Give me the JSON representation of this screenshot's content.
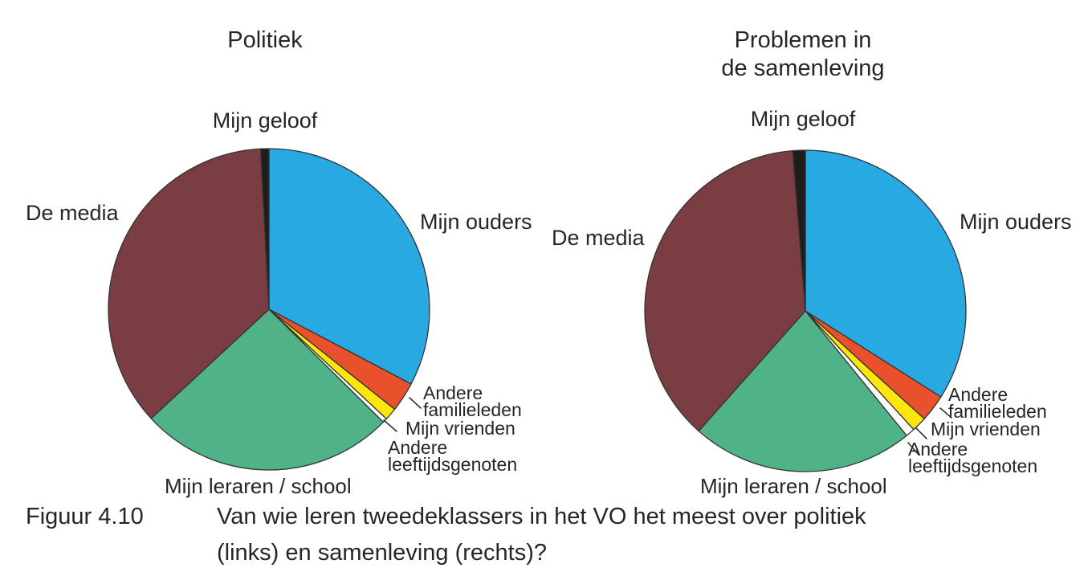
{
  "caption": {
    "label": "Figuur 4.10",
    "line1": "Van wie leren tweedeklassers in het VO het meest over politiek",
    "line2": "(links) en samenleving (rechts)?"
  },
  "chart_data": [
    {
      "type": "pie",
      "title": "Politiek",
      "title_lines": [
        "Politiek"
      ],
      "start_angle_deg": 0,
      "clockwise": true,
      "outline_color": "#333333",
      "legend_position": "around-slices",
      "slices": [
        {
          "label": "Mijn ouders",
          "degrees": 117.7,
          "percent_est": 32.7,
          "color": "#29A9E1"
        },
        {
          "label": "Andere familieleden",
          "degrees": 10.8,
          "percent_est": 3.0,
          "color": "#E8512B"
        },
        {
          "label": "Mijn vrienden",
          "degrees": 4.5,
          "percent_est": 1.3,
          "color": "#FFE60A"
        },
        {
          "label": "Andere leeftijdsgenoten",
          "degrees": 1.6,
          "percent_est": 0.4,
          "color": "#FFFFFF"
        },
        {
          "label": "Mijn leraren / school",
          "degrees": 92.6,
          "percent_est": 25.7,
          "color": "#50B287"
        },
        {
          "label": "De media",
          "degrees": 129.8,
          "percent_est": 36.1,
          "color": "#7A3E42"
        },
        {
          "label": "Mijn geloof",
          "degrees": 3.0,
          "percent_est": 0.8,
          "color": "#1D1D1B"
        }
      ]
    },
    {
      "type": "pie",
      "title": "Problemen in de samenleving",
      "title_lines": [
        "Problemen in",
        "de samenleving"
      ],
      "start_angle_deg": 0,
      "clockwise": true,
      "outline_color": "#333333",
      "legend_position": "around-slices",
      "slices": [
        {
          "label": "Mijn ouders",
          "degrees": 122.4,
          "percent_est": 34.0,
          "color": "#29A9E1"
        },
        {
          "label": "Andere familieleden",
          "degrees": 9.8,
          "percent_est": 2.7,
          "color": "#E8512B"
        },
        {
          "label": "Mijn vrienden",
          "degrees": 5.4,
          "percent_est": 1.5,
          "color": "#FFE60A"
        },
        {
          "label": "Andere leeftijdsgenoten",
          "degrees": 3.3,
          "percent_est": 0.9,
          "color": "#FFFFFF"
        },
        {
          "label": "Mijn leraren / school",
          "degrees": 80.7,
          "percent_est": 22.4,
          "color": "#50B287"
        },
        {
          "label": "De media",
          "degrees": 133.9,
          "percent_est": 37.2,
          "color": "#7A3E42"
        },
        {
          "label": "Mijn geloof",
          "degrees": 4.5,
          "percent_est": 1.3,
          "color": "#1D1D1B"
        }
      ]
    }
  ]
}
